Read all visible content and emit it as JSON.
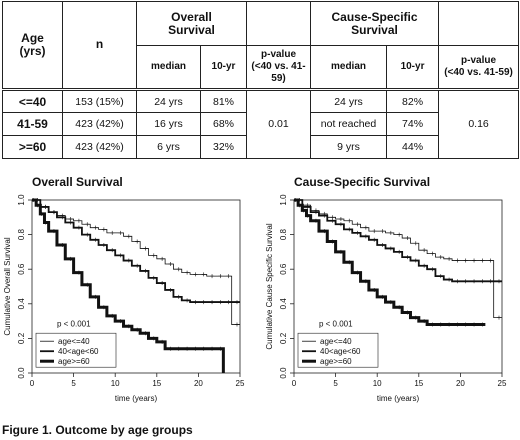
{
  "table": {
    "headers": {
      "age": "Age\n(yrs)",
      "n": "n",
      "overall": "Overall\nSurvival",
      "cause": "Cause-Specific\nSurvival",
      "median": "median",
      "ten_yr": "10-yr",
      "pvalue": "p-value\n(<40 vs. 41-59)"
    },
    "rows": [
      {
        "age": "<=40",
        "n": "153 (15%)",
        "os_median": "24 yrs",
        "os_10yr": "81%",
        "css_median": "24 yrs",
        "css_10yr": "82%"
      },
      {
        "age": "41-59",
        "n": "423 (42%)",
        "os_median": "16 yrs",
        "os_10yr": "68%",
        "css_median": "not reached",
        "css_10yr": "74%"
      },
      {
        "age": ">=60",
        "n": "423 (42%)",
        "os_median": "6 yrs",
        "os_10yr": "32%",
        "css_median": "9 yrs",
        "css_10yr": "44%"
      }
    ],
    "os_pvalue": "0.01",
    "css_pvalue": "0.16"
  },
  "chart_data": [
    {
      "type": "line",
      "title": "Overall Survival",
      "xlabel": "time (years)",
      "ylabel": "Cumulative Overall Survival",
      "xlim": [
        0,
        25
      ],
      "ylim": [
        0,
        1
      ],
      "xticks": [
        "0",
        "5",
        "10",
        "15",
        "20",
        "25"
      ],
      "yticks": [
        "0.0",
        "0.2",
        "0.4",
        "0.6",
        "0.8",
        "1.0"
      ],
      "annotation": "p < 0.001",
      "legend": "bottom-left",
      "series": [
        {
          "name": "age<=40",
          "weight": "thin",
          "x": [
            0,
            1,
            2,
            3,
            4,
            5,
            6,
            7,
            8,
            9,
            10,
            11,
            12,
            13,
            14,
            15,
            16,
            17,
            18,
            19,
            20,
            21,
            22,
            23,
            24,
            25
          ],
          "y": [
            1.0,
            0.96,
            0.93,
            0.91,
            0.89,
            0.88,
            0.86,
            0.84,
            0.83,
            0.81,
            0.81,
            0.79,
            0.76,
            0.72,
            0.68,
            0.66,
            0.63,
            0.6,
            0.58,
            0.57,
            0.57,
            0.56,
            0.56,
            0.56,
            0.28,
            0.28
          ]
        },
        {
          "name": "40<age<60",
          "weight": "medium",
          "x": [
            0,
            1,
            2,
            3,
            4,
            5,
            6,
            7,
            8,
            9,
            10,
            11,
            12,
            13,
            14,
            15,
            16,
            17,
            18,
            19,
            20,
            21,
            22,
            23,
            24,
            25
          ],
          "y": [
            1.0,
            0.96,
            0.93,
            0.9,
            0.87,
            0.84,
            0.8,
            0.77,
            0.74,
            0.71,
            0.68,
            0.65,
            0.62,
            0.59,
            0.55,
            0.52,
            0.48,
            0.44,
            0.42,
            0.41,
            0.41,
            0.41,
            0.41,
            0.41,
            0.41,
            0.41
          ]
        },
        {
          "name": "age>=60",
          "weight": "thick",
          "x": [
            0,
            0.5,
            1,
            1.5,
            2,
            3,
            4,
            5,
            6,
            7,
            8,
            9,
            10,
            11,
            12,
            13,
            14,
            15,
            16,
            17,
            18,
            19,
            20,
            21,
            22,
            23
          ],
          "y": [
            1.0,
            0.97,
            0.92,
            0.87,
            0.82,
            0.74,
            0.66,
            0.58,
            0.51,
            0.44,
            0.38,
            0.33,
            0.3,
            0.27,
            0.25,
            0.23,
            0.2,
            0.18,
            0.14,
            0.14,
            0.14,
            0.14,
            0.14,
            0.14,
            0.14,
            0.0
          ]
        }
      ]
    },
    {
      "type": "line",
      "title": "Cause-Specific Survival",
      "xlabel": "time (years)",
      "ylabel": "Cumulative Cause Specific Survival",
      "xlim": [
        0,
        25
      ],
      "ylim": [
        0,
        1
      ],
      "xticks": [
        "0",
        "5",
        "10",
        "15",
        "20",
        "25"
      ],
      "yticks": [
        "0.0",
        "0.2",
        "0.4",
        "0.6",
        "0.8",
        "1.0"
      ],
      "annotation": "p < 0.001",
      "legend": "bottom-left",
      "series": [
        {
          "name": "age<=40",
          "weight": "thin",
          "x": [
            0,
            1,
            2,
            3,
            4,
            5,
            6,
            7,
            8,
            9,
            10,
            11,
            12,
            13,
            14,
            15,
            16,
            17,
            18,
            19,
            20,
            21,
            22,
            23,
            24,
            25
          ],
          "y": [
            1.0,
            0.97,
            0.94,
            0.92,
            0.9,
            0.89,
            0.88,
            0.86,
            0.84,
            0.82,
            0.82,
            0.81,
            0.8,
            0.78,
            0.75,
            0.71,
            0.69,
            0.67,
            0.66,
            0.65,
            0.65,
            0.65,
            0.65,
            0.65,
            0.32,
            0.32
          ]
        },
        {
          "name": "40<age<60",
          "weight": "medium",
          "x": [
            0,
            1,
            2,
            3,
            4,
            5,
            6,
            7,
            8,
            9,
            10,
            11,
            12,
            13,
            14,
            15,
            16,
            17,
            18,
            19,
            20,
            21,
            22,
            23,
            24,
            25
          ],
          "y": [
            1.0,
            0.96,
            0.93,
            0.91,
            0.88,
            0.86,
            0.83,
            0.81,
            0.79,
            0.77,
            0.74,
            0.72,
            0.7,
            0.67,
            0.65,
            0.62,
            0.6,
            0.56,
            0.54,
            0.53,
            0.53,
            0.53,
            0.53,
            0.53,
            0.53,
            0.53
          ]
        },
        {
          "name": "age>=60",
          "weight": "thick",
          "x": [
            0,
            0.5,
            1,
            1.5,
            2,
            3,
            4,
            5,
            6,
            7,
            8,
            9,
            10,
            11,
            12,
            13,
            14,
            15,
            16,
            17,
            18,
            19,
            20,
            21,
            22,
            23
          ],
          "y": [
            1.0,
            0.97,
            0.94,
            0.91,
            0.88,
            0.82,
            0.76,
            0.7,
            0.64,
            0.58,
            0.53,
            0.48,
            0.44,
            0.41,
            0.38,
            0.35,
            0.32,
            0.3,
            0.28,
            0.28,
            0.28,
            0.28,
            0.28,
            0.28,
            0.28,
            0.28
          ]
        }
      ]
    }
  ],
  "caption": "Figure 1. Outcome by age groups"
}
